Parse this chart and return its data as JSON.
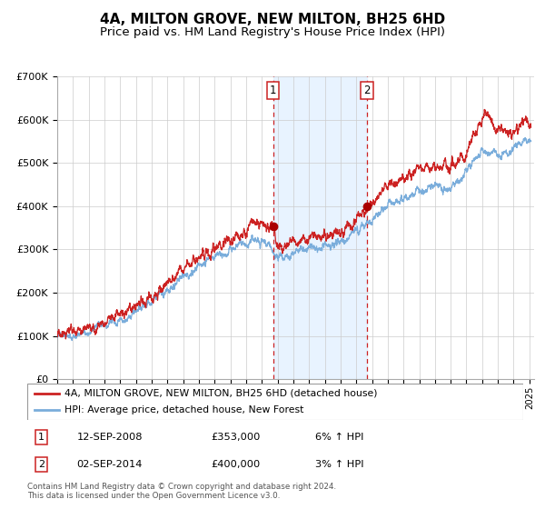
{
  "title": "4A, MILTON GROVE, NEW MILTON, BH25 6HD",
  "subtitle": "Price paid vs. HM Land Registry's House Price Index (HPI)",
  "ylim": [
    0,
    700000
  ],
  "yticks": [
    0,
    100000,
    200000,
    300000,
    400000,
    500000,
    600000,
    700000
  ],
  "ytick_labels": [
    "£0",
    "£100K",
    "£200K",
    "£300K",
    "£400K",
    "£500K",
    "£600K",
    "£700K"
  ],
  "hpi_color": "#7aaddb",
  "price_color": "#cc2222",
  "sale1_date": 2008.71,
  "sale1_price": 353000,
  "sale2_date": 2014.67,
  "sale2_price": 400000,
  "vline_color": "#cc2222",
  "shade_color": "#ddeeff",
  "dot_color": "#aa0000",
  "legend1_label": "4A, MILTON GROVE, NEW MILTON, BH25 6HD (detached house)",
  "legend2_label": "HPI: Average price, detached house, New Forest",
  "ann1_label": "1",
  "ann2_label": "2",
  "ann1_date_str": "12-SEP-2008",
  "ann1_price_str": "£353,000",
  "ann1_pct_str": "6% ↑ HPI",
  "ann2_date_str": "02-SEP-2014",
  "ann2_price_str": "£400,000",
  "ann2_pct_str": "3% ↑ HPI",
  "footer": "Contains HM Land Registry data © Crown copyright and database right 2024.\nThis data is licensed under the Open Government Licence v3.0.",
  "background_color": "#ffffff",
  "grid_color": "#cccccc",
  "title_fontsize": 11,
  "subtitle_fontsize": 9.5,
  "hpi_keypoints": [
    [
      1995.0,
      97000
    ],
    [
      1996.0,
      103000
    ],
    [
      1997.0,
      112000
    ],
    [
      1998.0,
      125000
    ],
    [
      1999.0,
      138000
    ],
    [
      2000.0,
      155000
    ],
    [
      2001.0,
      178000
    ],
    [
      2002.0,
      208000
    ],
    [
      2003.0,
      238000
    ],
    [
      2004.0,
      262000
    ],
    [
      2005.0,
      278000
    ],
    [
      2006.0,
      298000
    ],
    [
      2007.0,
      315000
    ],
    [
      2007.5,
      325000
    ],
    [
      2008.0,
      320000
    ],
    [
      2008.5,
      310000
    ],
    [
      2009.0,
      278000
    ],
    [
      2009.5,
      282000
    ],
    [
      2010.0,
      295000
    ],
    [
      2010.5,
      300000
    ],
    [
      2011.0,
      302000
    ],
    [
      2011.5,
      305000
    ],
    [
      2012.0,
      305000
    ],
    [
      2012.5,
      308000
    ],
    [
      2013.0,
      315000
    ],
    [
      2013.5,
      328000
    ],
    [
      2014.0,
      342000
    ],
    [
      2014.5,
      352000
    ],
    [
      2015.0,
      368000
    ],
    [
      2015.5,
      385000
    ],
    [
      2016.0,
      398000
    ],
    [
      2016.5,
      408000
    ],
    [
      2017.0,
      418000
    ],
    [
      2017.5,
      428000
    ],
    [
      2018.0,
      435000
    ],
    [
      2018.5,
      440000
    ],
    [
      2019.0,
      445000
    ],
    [
      2019.5,
      448000
    ],
    [
      2020.0,
      445000
    ],
    [
      2020.5,
      455000
    ],
    [
      2021.0,
      478000
    ],
    [
      2021.5,
      505000
    ],
    [
      2022.0,
      528000
    ],
    [
      2022.3,
      535000
    ],
    [
      2022.6,
      525000
    ],
    [
      2023.0,
      518000
    ],
    [
      2023.5,
      520000
    ],
    [
      2024.0,
      530000
    ],
    [
      2024.5,
      548000
    ],
    [
      2025.0,
      558000
    ]
  ],
  "price_keypoints": [
    [
      1995.0,
      102000
    ],
    [
      1996.0,
      108000
    ],
    [
      1997.0,
      118000
    ],
    [
      1998.0,
      133000
    ],
    [
      1999.0,
      148000
    ],
    [
      2000.0,
      165000
    ],
    [
      2001.0,
      190000
    ],
    [
      2002.0,
      222000
    ],
    [
      2003.0,
      255000
    ],
    [
      2004.0,
      282000
    ],
    [
      2005.0,
      300000
    ],
    [
      2006.0,
      318000
    ],
    [
      2007.0,
      340000
    ],
    [
      2007.5,
      358000
    ],
    [
      2008.0,
      355000
    ],
    [
      2008.5,
      350000
    ],
    [
      2008.71,
      353000
    ],
    [
      2009.0,
      305000
    ],
    [
      2009.5,
      300000
    ],
    [
      2010.0,
      312000
    ],
    [
      2010.5,
      320000
    ],
    [
      2011.0,
      325000
    ],
    [
      2011.5,
      330000
    ],
    [
      2012.0,
      328000
    ],
    [
      2012.5,
      335000
    ],
    [
      2013.0,
      342000
    ],
    [
      2013.5,
      358000
    ],
    [
      2014.0,
      368000
    ],
    [
      2014.5,
      382000
    ],
    [
      2014.67,
      400000
    ],
    [
      2015.0,
      410000
    ],
    [
      2015.5,
      428000
    ],
    [
      2016.0,
      445000
    ],
    [
      2016.5,
      458000
    ],
    [
      2017.0,
      468000
    ],
    [
      2017.5,
      478000
    ],
    [
      2018.0,
      485000
    ],
    [
      2018.5,
      490000
    ],
    [
      2019.0,
      492000
    ],
    [
      2019.5,
      495000
    ],
    [
      2020.0,
      492000
    ],
    [
      2020.5,
      505000
    ],
    [
      2021.0,
      528000
    ],
    [
      2021.5,
      560000
    ],
    [
      2022.0,
      598000
    ],
    [
      2022.2,
      620000
    ],
    [
      2022.4,
      608000
    ],
    [
      2022.7,
      592000
    ],
    [
      2023.0,
      580000
    ],
    [
      2023.3,
      570000
    ],
    [
      2023.6,
      568000
    ],
    [
      2024.0,
      575000
    ],
    [
      2024.5,
      588000
    ],
    [
      2025.0,
      592000
    ]
  ]
}
